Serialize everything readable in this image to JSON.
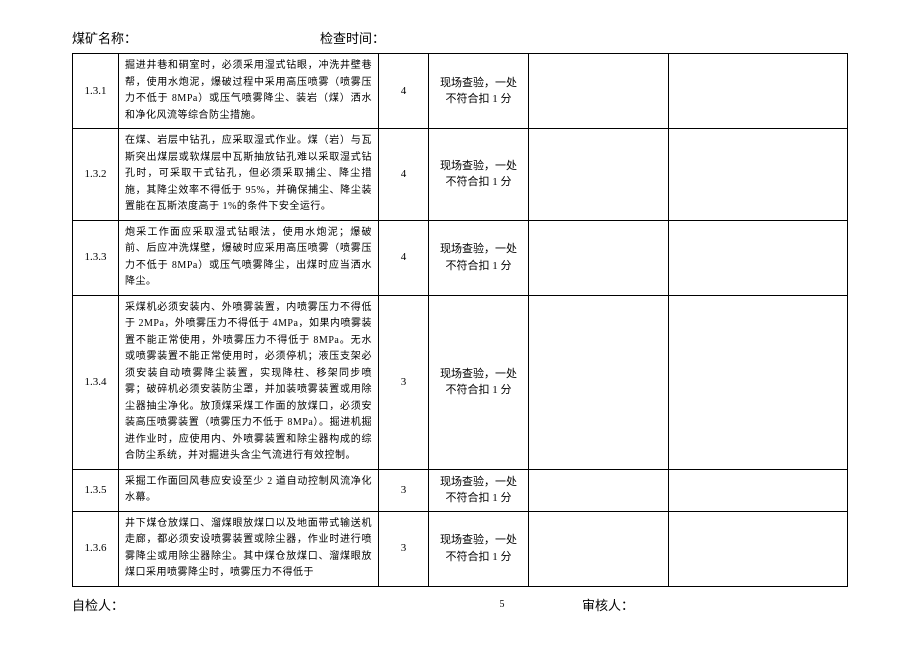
{
  "header": {
    "mine_name_label": "煤矿名称：",
    "check_time_label": "检查时间："
  },
  "rows": [
    {
      "id": "1.3.1",
      "desc": "掘进井巷和硐室时，必须采用湿式钻眼，冲洗井壁巷帮，使用水炮泥，爆破过程中采用高压喷雾（喷雾压力不低于 8MPa）或压气喷雾降尘、装岩（煤）洒水和净化风流等综合防尘措施。",
      "score": "4",
      "method": "现场查验，一处不符合扣 1 分"
    },
    {
      "id": "1.3.2",
      "desc": "在煤、岩层中钻孔，应采取湿式作业。煤（岩）与瓦斯突出煤层或软煤层中瓦斯抽放钻孔难以采取湿式钻孔时，可采取干式钻孔，但必须采取捕尘、降尘措施，其降尘效率不得低于 95%，并确保捕尘、降尘装置能在瓦斯浓度高于 1%的条件下安全运行。",
      "score": "4",
      "method": "现场查验，一处不符合扣 1 分"
    },
    {
      "id": "1.3.3",
      "desc": "炮采工作面应采取湿式钻眼法，使用水炮泥；爆破前、后应冲洗煤壁，爆破时应采用高压喷雾（喷雾压力不低于 8MPa）或压气喷雾降尘，出煤时应当洒水降尘。",
      "score": "4",
      "method": "现场查验，一处不符合扣 1 分"
    },
    {
      "id": "1.3.4",
      "desc": "采煤机必须安装内、外喷雾装置，内喷雾压力不得低于 2MPa，外喷雾压力不得低于 4MPa，如果内喷雾装置不能正常使用，外喷雾压力不得低于 8MPa。无水或喷雾装置不能正常使用时，必须停机；液压支架必须安装自动喷雾降尘装置，实现降柱、移架同步喷雾；破碎机必须安装防尘罩，并加装喷雾装置或用除尘器抽尘净化。放顶煤采煤工作面的放煤口，必须安装高压喷雾装置（喷雾压力不低于 8MPa）。掘进机掘进作业时，应使用内、外喷雾装置和除尘器构成的综合防尘系统，并对掘进头含尘气流进行有效控制。",
      "score": "3",
      "method": "现场查验，一处不符合扣 1 分"
    },
    {
      "id": "1.3.5",
      "desc": "采掘工作面回风巷应安设至少 2 道自动控制风流净化水幕。",
      "score": "3",
      "method": "现场查验，一处不符合扣 1 分"
    },
    {
      "id": "1.3.6",
      "desc": "井下煤仓放煤口、溜煤眼放煤口以及地面带式输送机走廊，都必须安设喷雾装置或除尘器，作业时进行喷雾降尘或用除尘器除尘。其中煤仓放煤口、溜煤眼放煤口采用喷雾降尘时，喷雾压力不得低于",
      "score": "3",
      "method": "现场查验，一处不符合扣 1 分"
    }
  ],
  "footer": {
    "self_check_label": "自检人：",
    "page_number": "5",
    "reviewer_label": "审核人："
  },
  "style": {
    "font_family": "SimSun",
    "border_color": "#000000",
    "text_color": "#000000",
    "background_color": "#ffffff",
    "body_fontsize": 10,
    "header_fontsize": 13
  }
}
